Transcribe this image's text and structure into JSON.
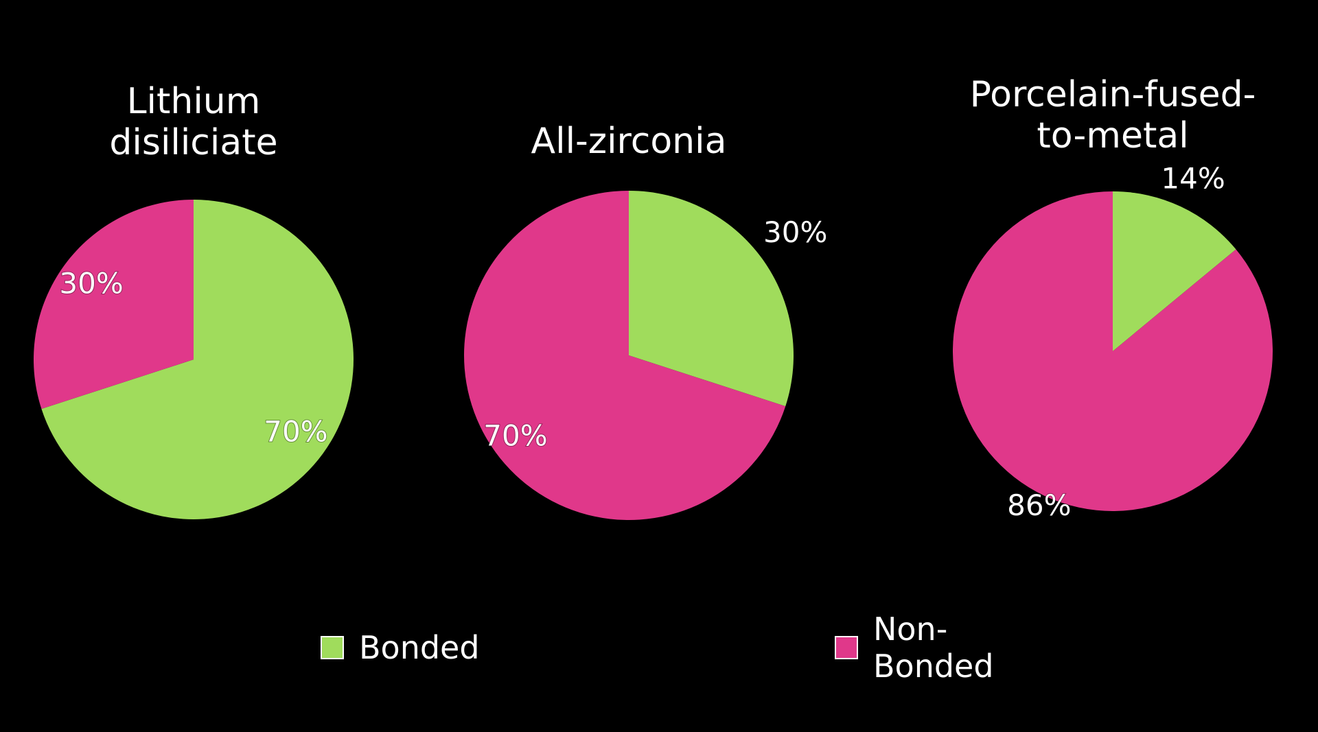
{
  "chart_data": [
    {
      "type": "pie",
      "title": "Lithium disiliciate",
      "categories": [
        "Bonded",
        "Non-Bonded"
      ],
      "values": [
        70,
        30
      ],
      "value_labels": [
        "70%",
        "30%"
      ],
      "colors": [
        "#a0dc5c",
        "#e0388a"
      ]
    },
    {
      "type": "pie",
      "title": "All-zirconia",
      "categories": [
        "Bonded",
        "Non-Bonded"
      ],
      "values": [
        30,
        70
      ],
      "value_labels": [
        "30%",
        "70%"
      ],
      "colors": [
        "#a0dc5c",
        "#e0388a"
      ]
    },
    {
      "type": "pie",
      "title": "Porcelain-fused-to-metal",
      "categories": [
        "Bonded",
        "Non-Bonded"
      ],
      "values": [
        14,
        86
      ],
      "value_labels": [
        "14%",
        "86%"
      ],
      "colors": [
        "#a0dc5c",
        "#e0388a"
      ]
    }
  ]
}
